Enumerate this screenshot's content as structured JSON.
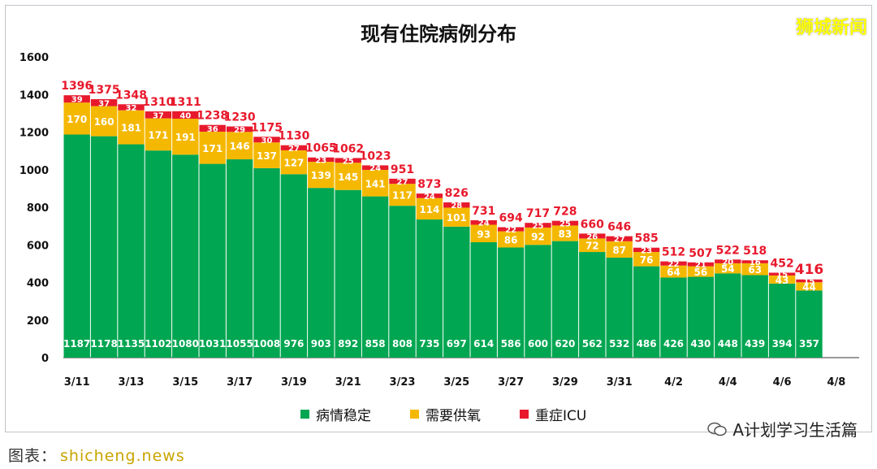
{
  "brand": "狮城新闻",
  "watermark": "A计划学习生活篇",
  "footer": {
    "label": "图表：",
    "source": "shicheng.news"
  },
  "colors": {
    "stable": "#00a651",
    "oxygen": "#f5b800",
    "icu": "#e8192c",
    "total_label": "#e8192c"
  },
  "chart_data": {
    "type": "bar",
    "stacked": true,
    "title": "现有住院病例分布",
    "xlabel": "",
    "ylabel": "",
    "ylim": [
      0,
      1600
    ],
    "yticks": [
      0,
      200,
      400,
      600,
      800,
      1000,
      1200,
      1400,
      1600
    ],
    "x_tick_labels": [
      "3/11",
      "3/13",
      "3/15",
      "3/17",
      "3/19",
      "3/21",
      "3/23",
      "3/25",
      "3/27",
      "3/29",
      "3/31",
      "4/2",
      "4/4",
      "4/6",
      "4/8"
    ],
    "legend_position": "bottom",
    "grid": false,
    "categories": [
      "3/11",
      "3/12",
      "3/13",
      "3/14",
      "3/15",
      "3/16",
      "3/17",
      "3/18",
      "3/19",
      "3/20",
      "3/21",
      "3/22",
      "3/23",
      "3/24",
      "3/25",
      "3/26",
      "3/27",
      "3/28",
      "3/29",
      "3/30",
      "3/31",
      "4/1",
      "4/2",
      "4/3",
      "4/4",
      "4/5",
      "4/6",
      "4/7"
    ],
    "series": [
      {
        "name": "病情稳定",
        "values": [
          1187,
          1178,
          1135,
          1102,
          1080,
          1031,
          1055,
          1008,
          976,
          903,
          892,
          858,
          808,
          735,
          697,
          614,
          586,
          600,
          620,
          562,
          532,
          486,
          426,
          430,
          448,
          439,
          394,
          357
        ]
      },
      {
        "name": "需要供氧",
        "values": [
          170,
          160,
          181,
          171,
          191,
          171,
          146,
          137,
          127,
          139,
          145,
          141,
          117,
          114,
          101,
          93,
          86,
          92,
          83,
          72,
          87,
          76,
          64,
          56,
          54,
          63,
          43,
          44
        ]
      },
      {
        "name": "重症ICU",
        "values": [
          39,
          37,
          32,
          37,
          40,
          36,
          29,
          30,
          27,
          23,
          25,
          24,
          27,
          24,
          28,
          24,
          22,
          25,
          25,
          26,
          27,
          23,
          22,
          21,
          20,
          16,
          15,
          15
        ]
      }
    ],
    "totals": [
      1396,
      1375,
      1348,
      1310,
      1311,
      1238,
      1230,
      1175,
      1130,
      1065,
      1062,
      1023,
      951,
      873,
      826,
      731,
      694,
      717,
      728,
      660,
      646,
      585,
      512,
      507,
      522,
      518,
      452,
      416
    ]
  }
}
